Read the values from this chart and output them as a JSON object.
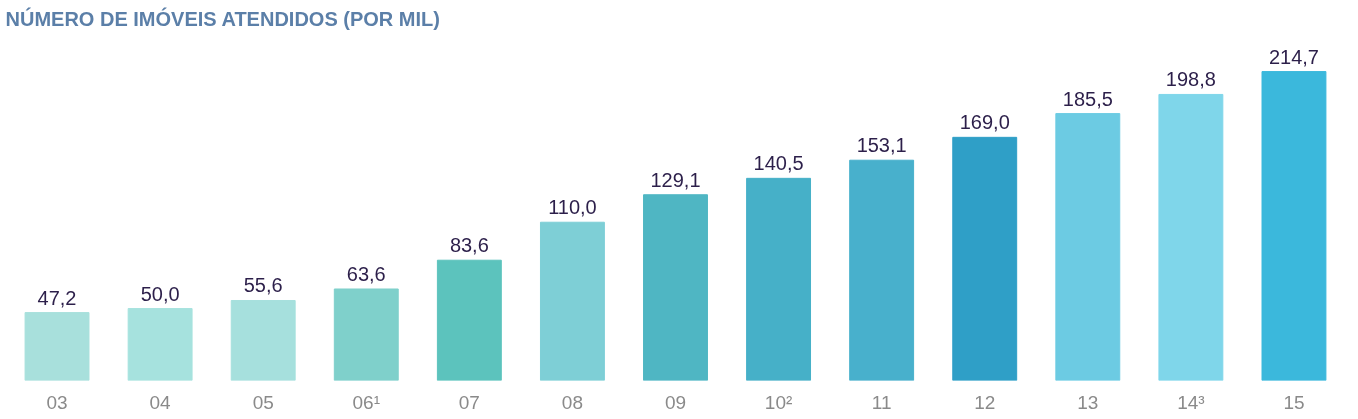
{
  "chart_data": {
    "type": "bar",
    "title": "NÚMERO DE IMÓVEIS ATENDIDOS (POR MIL)",
    "categories": [
      "03",
      "04",
      "05",
      "06¹",
      "07",
      "08",
      "09",
      "10²",
      "11",
      "12",
      "13",
      "14³",
      "15"
    ],
    "values": [
      47.2,
      50.0,
      55.6,
      63.6,
      83.6,
      110.0,
      129.1,
      140.5,
      153.1,
      169.0,
      185.5,
      198.8,
      214.7
    ],
    "value_labels": [
      "47,2",
      "50,0",
      "55,6",
      "63,6",
      "83,6",
      "110,0",
      "129,1",
      "140,5",
      "153,1",
      "169,0",
      "185,5",
      "198,8",
      "214,7"
    ],
    "colors": [
      "#a8e0dc",
      "#a6e2de",
      "#a6e0dd",
      "#7fd0cb",
      "#5cc3bd",
      "#7ecfd6",
      "#4fb6c3",
      "#46b0c8",
      "#48b0cc",
      "#2f9fc7",
      "#6ccbe3",
      "#7fd6ea",
      "#3bb8dc"
    ],
    "grid": false
  }
}
